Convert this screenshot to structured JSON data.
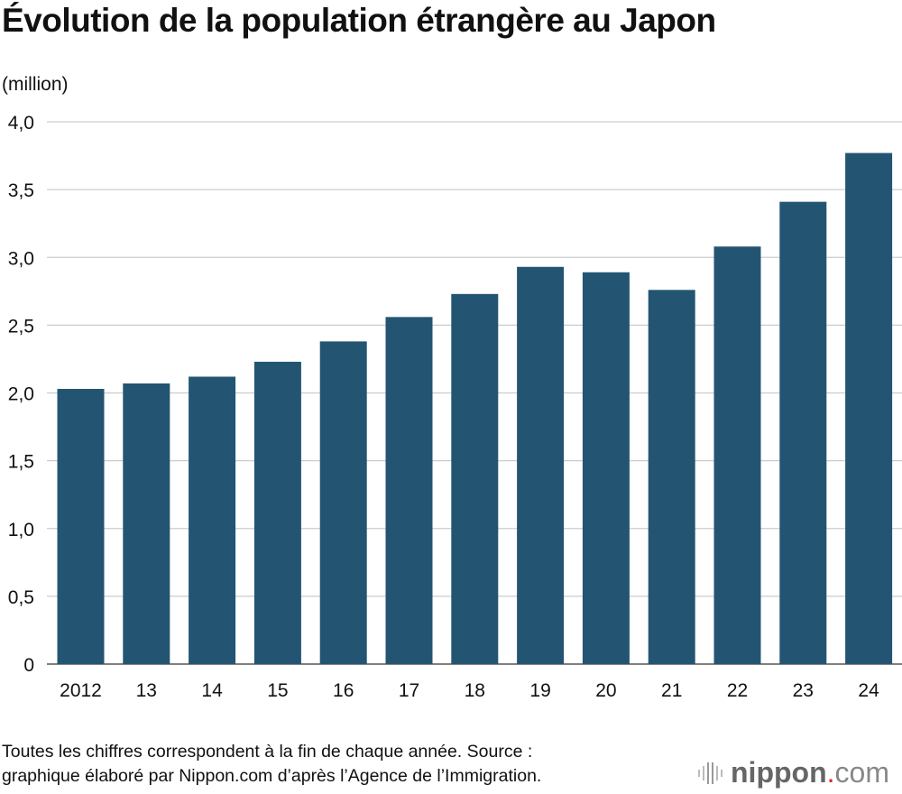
{
  "chart_data": {
    "type": "bar",
    "title": "Évolution de la population étrangère au Japon",
    "ylabel": "(million)",
    "xlabel": "",
    "categories": [
      "2012",
      "13",
      "14",
      "15",
      "16",
      "17",
      "18",
      "19",
      "20",
      "21",
      "22",
      "23",
      "24"
    ],
    "values": [
      2.03,
      2.07,
      2.12,
      2.23,
      2.38,
      2.56,
      2.73,
      2.93,
      2.89,
      2.76,
      3.08,
      3.41,
      3.77
    ],
    "ylim": [
      0,
      4.0
    ],
    "yticks": [
      0,
      0.5,
      1.0,
      1.5,
      2.0,
      2.5,
      3.0,
      3.5,
      4.0
    ],
    "ytick_labels": [
      "0",
      "0,5",
      "1,0",
      "1,5",
      "2,0",
      "2,5",
      "3,0",
      "3,5",
      "4,0"
    ],
    "grid": true,
    "bar_color": "#235573"
  },
  "footer": {
    "note_line1": "Toutes les chiffres correspondent à la fin de chaque année. Source :",
    "note_line2": "graphique élaboré par Nippon.com d’après l’Agence de l’Immigration.",
    "logo_text": "nippon.com",
    "logo_accent": "#e6231e"
  }
}
